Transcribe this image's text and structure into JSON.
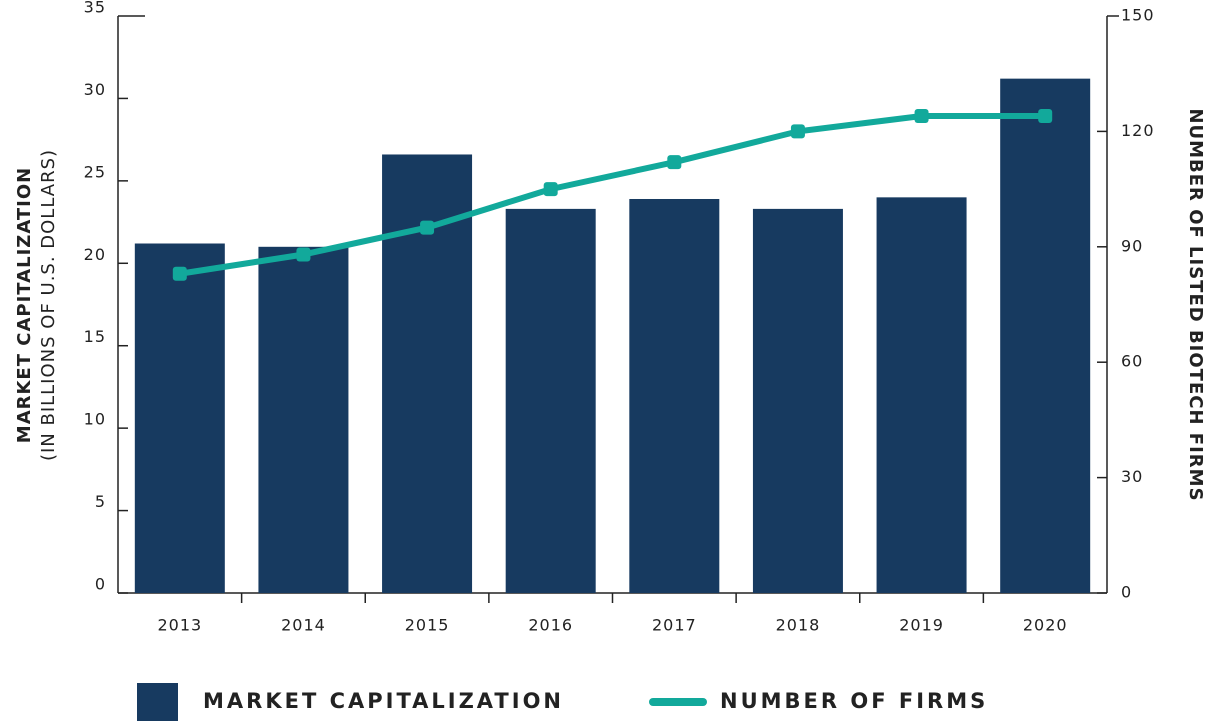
{
  "chart_data": {
    "type": "bar",
    "categories": [
      "2013",
      "2014",
      "2015",
      "2016",
      "2017",
      "2018",
      "2019",
      "2020"
    ],
    "series": [
      {
        "name": "MARKET CAPITALIZATION",
        "color": "#173a60",
        "values": [
          21.2,
          21.0,
          26.6,
          23.3,
          23.9,
          23.3,
          24.0,
          31.2
        ]
      },
      {
        "name": "NUMBER OF FIRMS",
        "color": "#12a99b",
        "type": "line",
        "axis": "y2",
        "values": [
          83,
          88,
          95,
          105,
          112,
          120,
          124,
          124
        ]
      }
    ],
    "ylabel": "MARKET CAPITALIZATION",
    "ylabel_sub": "(IN BILLIONS OF U.S. DOLLARS)",
    "y2label": "NUMBER OF LISTED BIOTECH FIRMS",
    "ylim": [
      0,
      35
    ],
    "yticks": [
      0,
      5,
      10,
      15,
      20,
      25,
      30,
      35
    ],
    "y2lim": [
      0,
      150
    ],
    "y2ticks": [
      0,
      30,
      60,
      90,
      120,
      150
    ],
    "legend": "bottom"
  }
}
